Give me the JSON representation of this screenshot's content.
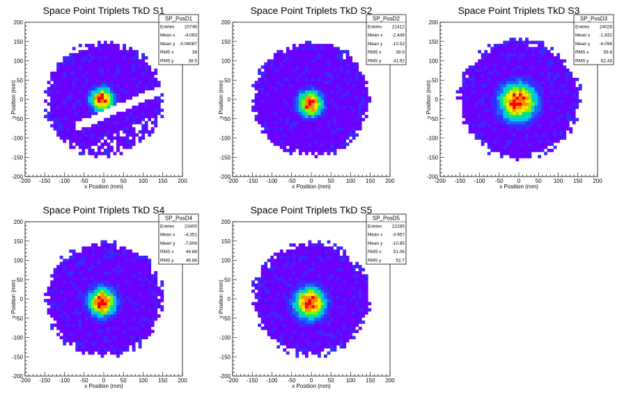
{
  "chart_data": [
    {
      "type": "heatmap",
      "title": "Space Point Triplets TkD S1",
      "xlabel": "x Position (mm)",
      "ylabel": "y Position (mm)",
      "xlim": [
        -200,
        200
      ],
      "ylim": [
        -200,
        200
      ],
      "x_ticks": [
        "-200",
        "-150",
        "-100",
        "-50",
        "0",
        "50",
        "100",
        "150",
        "200"
      ],
      "y_ticks": [
        "-200",
        "-150",
        "-100",
        "-50",
        "0",
        "50",
        "100",
        "150",
        "200"
      ],
      "stats": {
        "name": "SP_PosD1",
        "rows": [
          {
            "label": "Entries",
            "value": "20746"
          },
          {
            "label": "Mean x",
            "value": "-4.093"
          },
          {
            "label": "Mean y",
            "value": "-0.06087"
          },
          {
            "label": "RMS x",
            "value": "38"
          },
          {
            "label": "RMS y",
            "value": "38.5"
          }
        ]
      },
      "entries": 20746,
      "mean_x": -4.093,
      "mean_y": -0.06087,
      "rms_x": 38,
      "rms_y": 38.5,
      "extent_radius": 150,
      "gap": {
        "slope": 0.45,
        "offset": -40,
        "width": 12
      }
    },
    {
      "type": "heatmap",
      "title": "Space Point Triplets TkD S2",
      "xlabel": "x Position (mm)",
      "ylabel": "y Position (mm)",
      "xlim": [
        -200,
        200
      ],
      "ylim": [
        -200,
        200
      ],
      "x_ticks": [
        "-200",
        "-150",
        "-100",
        "-50",
        "0",
        "50",
        "100",
        "150",
        "200"
      ],
      "y_ticks": [
        "-200",
        "-150",
        "-100",
        "-50",
        "0",
        "50",
        "100",
        "150",
        "200"
      ],
      "stats": {
        "name": "SP_PosD2",
        "rows": [
          {
            "label": "Entries",
            "value": "21412"
          },
          {
            "label": "Mean x",
            "value": "-2.449"
          },
          {
            "label": "Mean y",
            "value": "-10.52"
          },
          {
            "label": "RMS x",
            "value": "39.9"
          },
          {
            "label": "RMS y",
            "value": "41.92"
          }
        ]
      },
      "entries": 21412,
      "mean_x": -2.449,
      "mean_y": -10.52,
      "rms_x": 39.9,
      "rms_y": 41.92,
      "extent_radius": 150
    },
    {
      "type": "heatmap",
      "title": "Space Point Triplets TkD S3",
      "xlabel": "x Position (mm)",
      "ylabel": "y Position (mm)",
      "xlim": [
        -200,
        200
      ],
      "ylim": [
        -200,
        200
      ],
      "x_ticks": [
        "-200",
        "-150",
        "-100",
        "-50",
        "0",
        "50",
        "100",
        "150",
        "200"
      ],
      "y_ticks": [
        "-200",
        "-150",
        "-100",
        "-50",
        "0",
        "50",
        "100",
        "150",
        "200"
      ],
      "stats": {
        "name": "SP_PosD3",
        "rows": [
          {
            "label": "Entries",
            "value": "24028"
          },
          {
            "label": "Mean x",
            "value": "-1.832"
          },
          {
            "label": "Mean y",
            "value": "-6.094"
          },
          {
            "label": "RMS x",
            "value": "59.8"
          },
          {
            "label": "RMS y",
            "value": "62.43"
          }
        ]
      },
      "entries": 24028,
      "mean_x": -1.832,
      "mean_y": -6.094,
      "rms_x": 59.8,
      "rms_y": 62.43,
      "extent_radius": 155
    },
    {
      "type": "heatmap",
      "title": "Space Point Triplets TkD S4",
      "xlabel": "x Position (mm)",
      "ylabel": "y Position (mm)",
      "xlim": [
        -200,
        200
      ],
      "ylim": [
        -200,
        200
      ],
      "x_ticks": [
        "-200",
        "-150",
        "-100",
        "-50",
        "0",
        "50",
        "100",
        "150",
        "200"
      ],
      "y_ticks": [
        "-200",
        "-150",
        "-100",
        "-50",
        "0",
        "50",
        "100",
        "150",
        "200"
      ],
      "stats": {
        "name": "SP_PosD4",
        "rows": [
          {
            "label": "Entries",
            "value": "23400"
          },
          {
            "label": "Mean x",
            "value": "-4.351"
          },
          {
            "label": "Mean y",
            "value": "-7.806"
          },
          {
            "label": "RMS x",
            "value": "44.68"
          },
          {
            "label": "RMS y",
            "value": "46.88"
          }
        ]
      },
      "entries": 23400,
      "mean_x": -4.351,
      "mean_y": -7.806,
      "rms_x": 44.68,
      "rms_y": 46.88,
      "extent_radius": 150
    },
    {
      "type": "heatmap",
      "title": "Space Point Triplets TkD S5",
      "xlabel": "x Position (mm)",
      "ylabel": "y Position (mm)",
      "xlim": [
        -200,
        200
      ],
      "ylim": [
        -200,
        200
      ],
      "x_ticks": [
        "-200",
        "-150",
        "-100",
        "-50",
        "0",
        "50",
        "100",
        "150",
        "200"
      ],
      "y_ticks": [
        "-200",
        "-150",
        "-100",
        "-50",
        "0",
        "50",
        "100",
        "150",
        "200"
      ],
      "stats": {
        "name": "SP_PosD5",
        "rows": [
          {
            "label": "Entries",
            "value": "22285"
          },
          {
            "label": "Mean x",
            "value": "-3.957"
          },
          {
            "label": "Mean y",
            "value": "-10.85"
          },
          {
            "label": "RMS x",
            "value": "51.06"
          },
          {
            "label": "RMS y",
            "value": "52.7"
          }
        ]
      },
      "entries": 22285,
      "mean_x": -3.957,
      "mean_y": -10.85,
      "rms_x": 51.06,
      "rms_y": 52.7,
      "extent_radius": 150
    }
  ],
  "colors": {
    "palette": [
      "#6a00ff",
      "#3a28ff",
      "#1e64ff",
      "#00c8e6",
      "#00e682",
      "#8cf000",
      "#ffe600",
      "#ff8c00",
      "#ff0000"
    ]
  }
}
